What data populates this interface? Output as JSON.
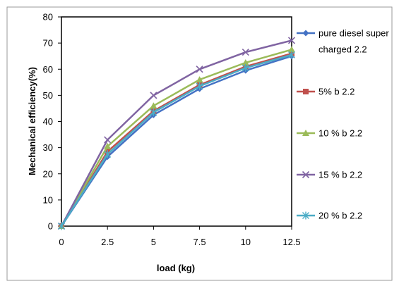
{
  "chart_data": {
    "type": "line",
    "title": "",
    "xlabel": "load (kg)",
    "ylabel": "Mechanical efficiency(%)",
    "x": [
      0,
      2.5,
      5,
      7.5,
      10,
      12.5
    ],
    "x_tick_labels": [
      "0",
      "2.5",
      "5",
      "7.5",
      "10",
      "12.5"
    ],
    "ylim": [
      0,
      80
    ],
    "y_ticks": [
      0,
      10,
      20,
      30,
      40,
      50,
      60,
      70,
      80
    ],
    "grid": false,
    "legend_position": "right",
    "series": [
      {
        "name": [
          "pure diesel super",
          "charged 2.2"
        ],
        "values": [
          0,
          26.5,
          42.5,
          52.5,
          59.5,
          65
        ],
        "color": "#4472C4",
        "marker": "diamond"
      },
      {
        "name": [
          "5% b 2.2"
        ],
        "values": [
          0,
          28.5,
          44,
          54,
          61,
          66
        ],
        "color": "#C0504D",
        "marker": "square"
      },
      {
        "name": [
          "10 % b 2.2"
        ],
        "values": [
          0,
          30.5,
          46,
          56,
          62.5,
          67.5
        ],
        "color": "#9BBB59",
        "marker": "triangle"
      },
      {
        "name": [
          "15 % b 2.2"
        ],
        "values": [
          0,
          33,
          50,
          60,
          66.5,
          71
        ],
        "color": "#8064A2",
        "marker": "x"
      },
      {
        "name": [
          "20 % b 2.2"
        ],
        "values": [
          0,
          27.5,
          43.5,
          53.5,
          60.5,
          65.5
        ],
        "color": "#4BACC6",
        "marker": "star"
      }
    ]
  }
}
